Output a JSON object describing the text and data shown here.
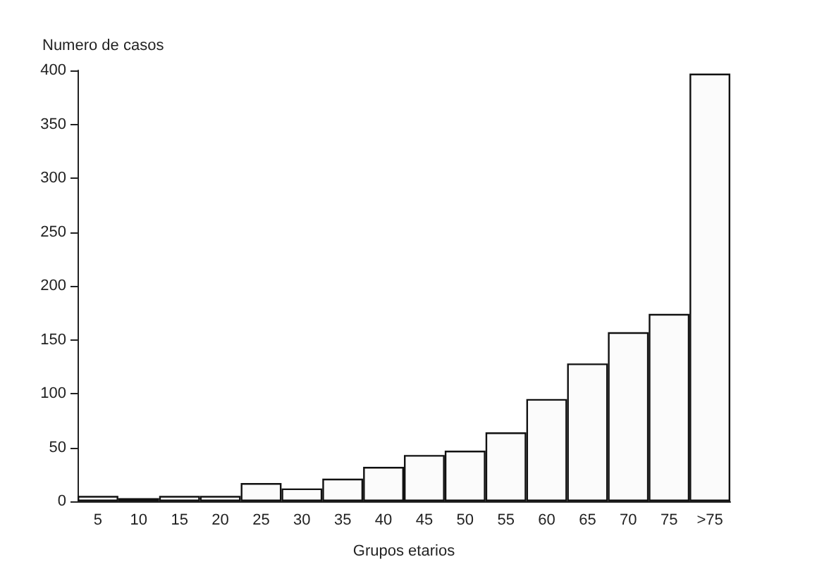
{
  "chart_data": {
    "type": "bar",
    "ylabel": "Numero de casos",
    "xlabel": "Grupos etarios",
    "categories": [
      "5",
      "10",
      "15",
      "20",
      "25",
      "30",
      "35",
      "40",
      "45",
      "50",
      "55",
      "60",
      "65",
      "70",
      "75",
      ">75"
    ],
    "values": [
      5,
      3,
      5,
      5,
      17,
      12,
      21,
      32,
      43,
      47,
      64,
      95,
      128,
      157,
      174,
      397
    ],
    "color": "#fbfbfb",
    "ylim": [
      0,
      400
    ],
    "yticks": [
      0,
      50,
      100,
      150,
      200,
      250,
      300,
      350,
      400
    ]
  }
}
